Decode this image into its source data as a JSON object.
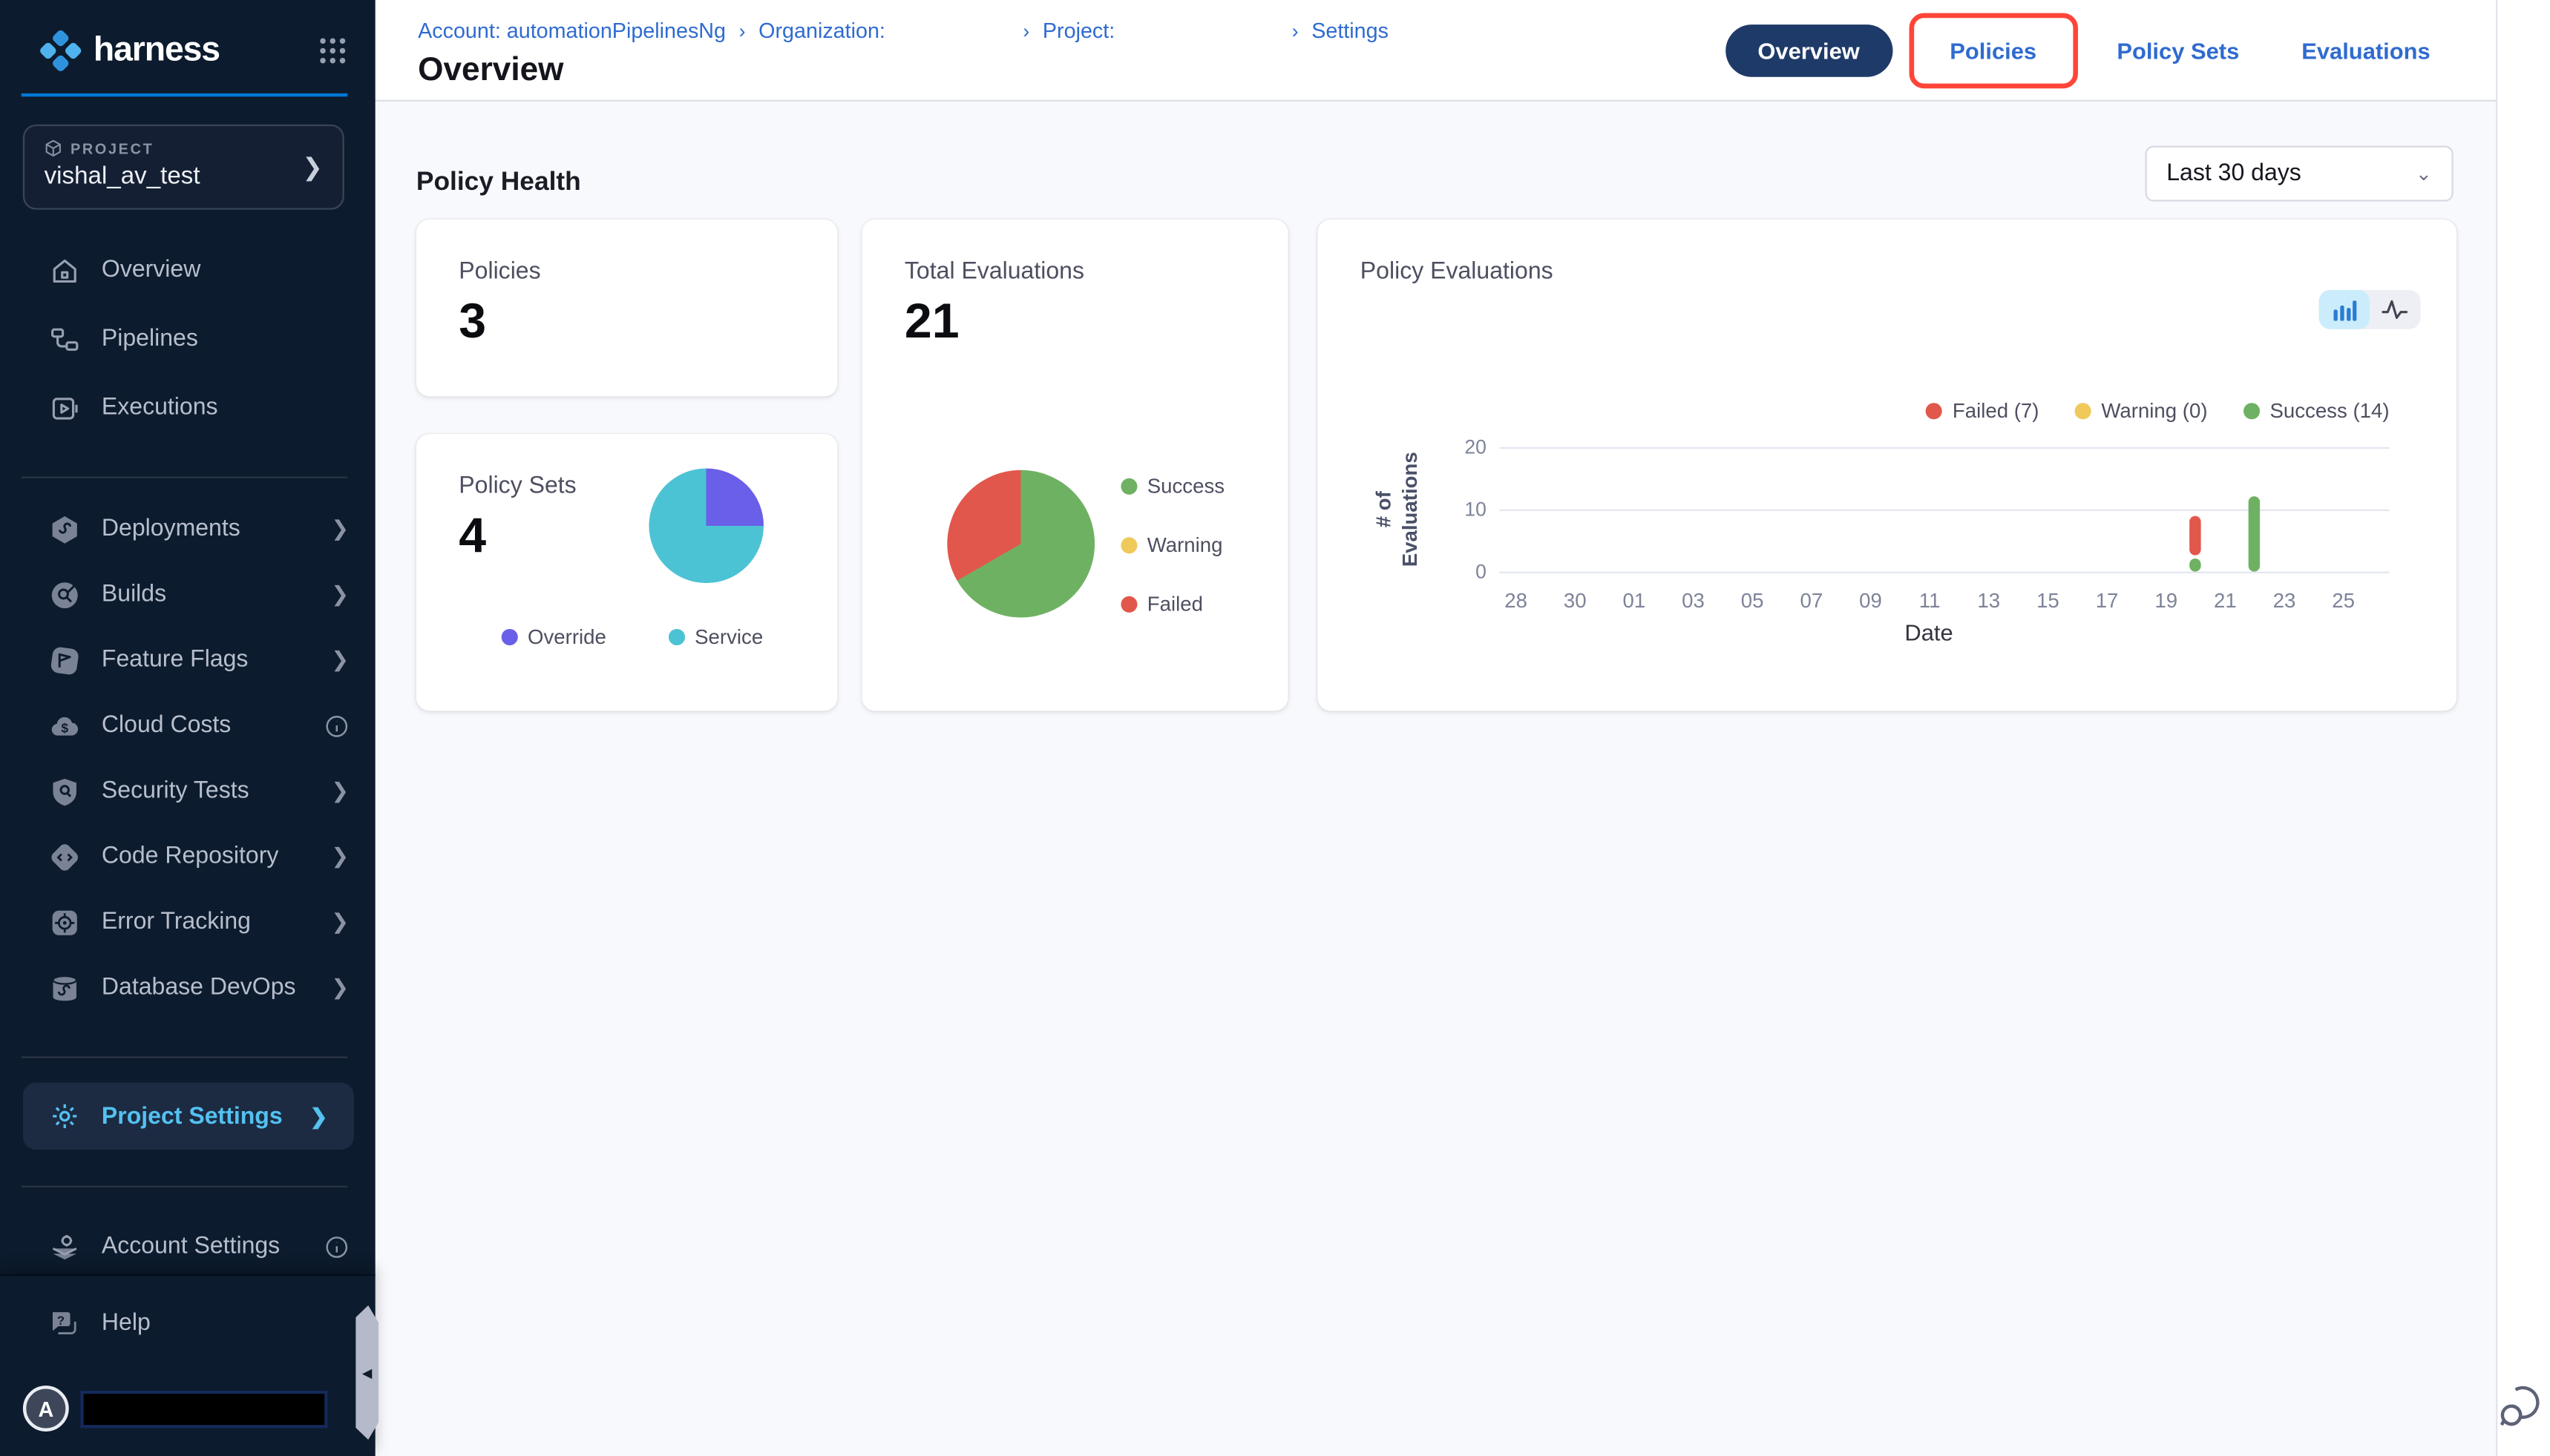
{
  "sidebar": {
    "logo_text": "harness",
    "project_label": "PROJECT",
    "project_name": "vishal_av_test",
    "nav_primary": [
      {
        "label": "Overview"
      },
      {
        "label": "Pipelines"
      },
      {
        "label": "Executions"
      }
    ],
    "nav_modules": [
      {
        "label": "Deployments",
        "trailing": "chevron"
      },
      {
        "label": "Builds",
        "trailing": "chevron"
      },
      {
        "label": "Feature Flags",
        "trailing": "chevron"
      },
      {
        "label": "Cloud Costs",
        "trailing": "info"
      },
      {
        "label": "Security Tests",
        "trailing": "chevron"
      },
      {
        "label": "Code Repository",
        "trailing": "chevron"
      },
      {
        "label": "Error Tracking",
        "trailing": "chevron"
      },
      {
        "label": "Database DevOps",
        "trailing": "chevron"
      }
    ],
    "project_settings_label": "Project Settings",
    "account_settings_label": "Account Settings",
    "help_label": "Help",
    "avatar_letter": "A"
  },
  "header": {
    "breadcrumbs": [
      {
        "label": "Account: automationPipelinesNg"
      },
      {
        "label": "Organization:"
      },
      {
        "label": "Project:"
      },
      {
        "label": "Settings"
      }
    ],
    "title": "Overview",
    "tabs": [
      {
        "label": "Overview",
        "active": true
      },
      {
        "label": "Policies",
        "highlighted": true
      },
      {
        "label": "Policy Sets",
        "active": false
      },
      {
        "label": "Evaluations",
        "active": false
      }
    ]
  },
  "content": {
    "section_title": "Policy Health",
    "date_range_value": "Last 30 days",
    "cards": {
      "policies": {
        "title": "Policies",
        "value": "3"
      },
      "total_evaluations": {
        "title": "Total Evaluations",
        "value": "21"
      },
      "policy_sets": {
        "title": "Policy Sets",
        "value": "4"
      },
      "policy_evaluations": {
        "title": "Policy Evaluations"
      }
    }
  },
  "colors": {
    "accent_blue": "#0278D5",
    "link_blue": "#2F6BD0",
    "active_pill_navy": "#1E3A68",
    "annotation_red": "#FF4538",
    "sidebar_bg": "#0C1B2D",
    "success_green": "#6FB163",
    "warning_yellow": "#EFC95A",
    "failed_red": "#E2574B",
    "override_purple": "#6A5FE8",
    "service_teal": "#4CC3D4"
  },
  "chart_data": [
    {
      "id": "policy_sets_pie",
      "type": "pie",
      "title": "Policy Sets",
      "labels": [
        "Override",
        "Service"
      ],
      "values": [
        1,
        3
      ],
      "colors": [
        "#6A5FE8",
        "#4CC3D4"
      ],
      "legend_position": "bottom"
    },
    {
      "id": "total_evaluations_pie",
      "type": "pie",
      "title": "Total Evaluations",
      "labels": [
        "Success",
        "Warning",
        "Failed"
      ],
      "values": [
        14,
        0,
        7
      ],
      "colors": [
        "#6FB163",
        "#EFC95A",
        "#E2574B"
      ],
      "legend_position": "right"
    },
    {
      "id": "policy_evaluations_bar",
      "type": "bar",
      "stacked": true,
      "title": "Policy Evaluations",
      "xlabel": "Date",
      "ylabel": "# of\nEvaluations",
      "ylim": [
        0,
        20
      ],
      "yticks": [
        0,
        10,
        20
      ],
      "grid": true,
      "legend_position": "top-right",
      "x_tick_labels": [
        "28",
        "30",
        "01",
        "03",
        "05",
        "07",
        "09",
        "11",
        "13",
        "15",
        "17",
        "19",
        "21",
        "23",
        "25"
      ],
      "legend": [
        {
          "label": "Failed (7)",
          "color": "#E2574B"
        },
        {
          "label": "Warning (0)",
          "color": "#EFC95A"
        },
        {
          "label": "Success (14)",
          "color": "#6FB163"
        }
      ],
      "bars": [
        {
          "date": "20",
          "x_tick_position": 11.5,
          "segments": [
            {
              "name": "Success",
              "value": 2,
              "color": "#6FB163"
            },
            {
              "name": "Failed",
              "value": 7,
              "color": "#E2574B"
            }
          ]
        },
        {
          "date": "22",
          "x_tick_position": 12.5,
          "segments": [
            {
              "name": "Success",
              "value": 12,
              "color": "#6FB163"
            }
          ]
        }
      ]
    }
  ]
}
